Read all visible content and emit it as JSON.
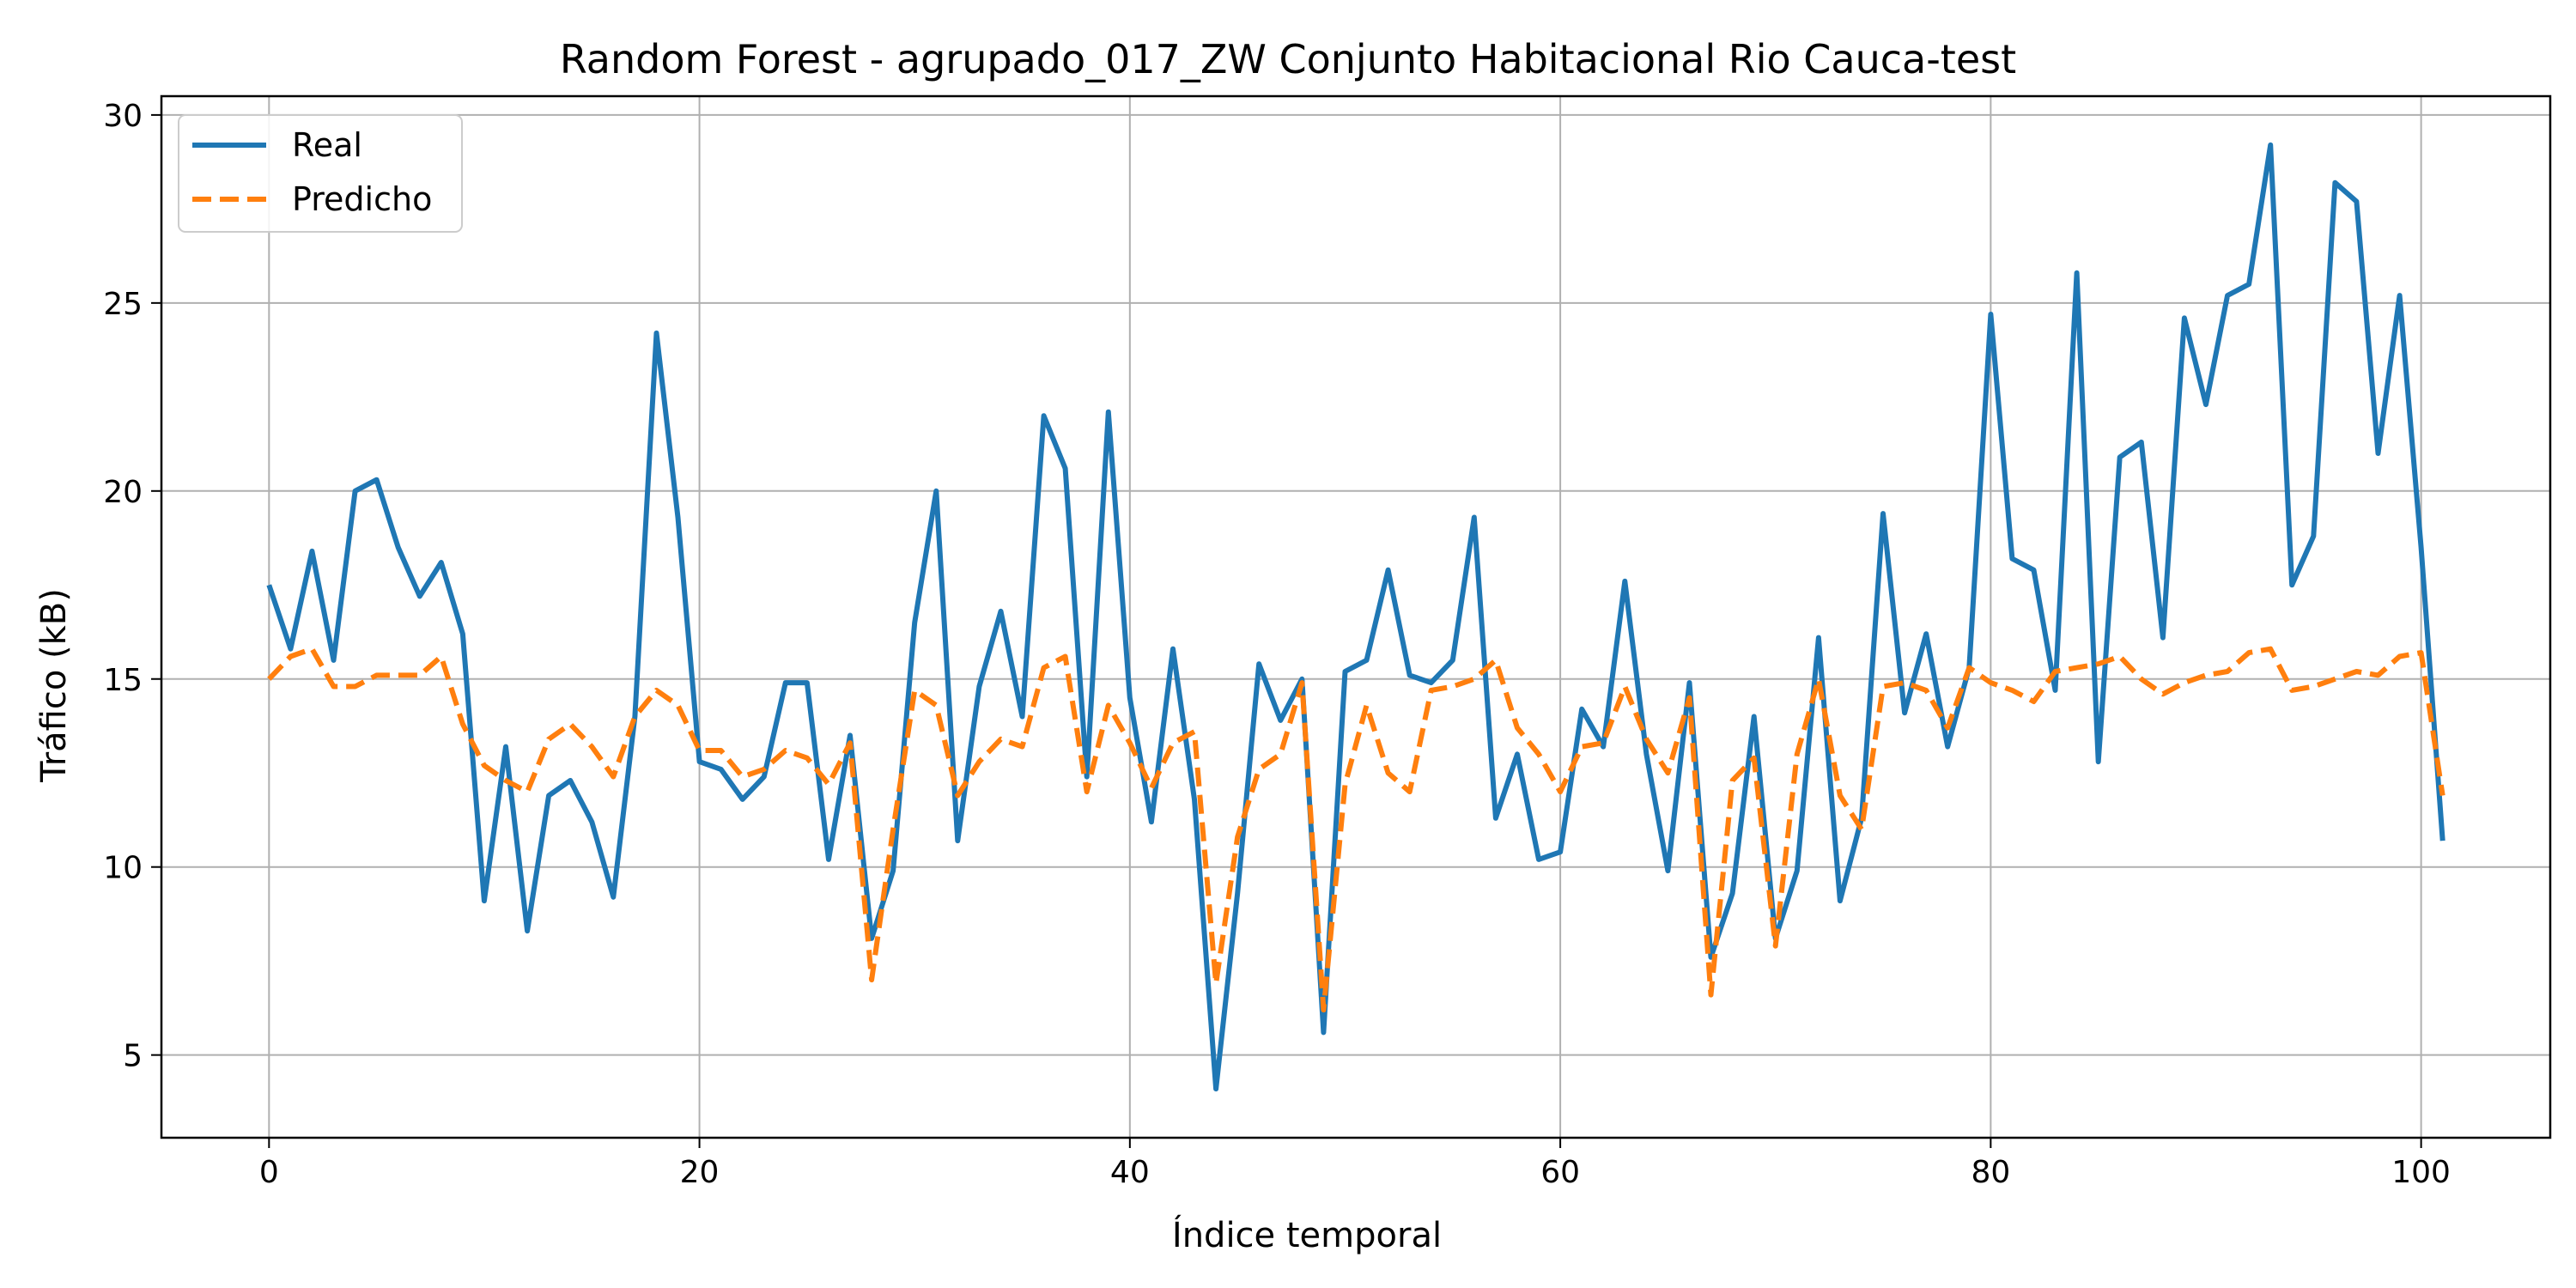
{
  "chart_data": {
    "type": "line",
    "title": "Random Forest - agrupado_017_ZW Conjunto Habitacional Rio Cauca-test",
    "xlabel": "Índice temporal",
    "ylabel": "Tráfico (kB)",
    "xlim": [
      -5,
      106
    ],
    "ylim": [
      2.8,
      30.5
    ],
    "xticks": [
      0,
      20,
      40,
      60,
      80,
      100
    ],
    "yticks": [
      5,
      10,
      15,
      20,
      25,
      30
    ],
    "grid": true,
    "legend_position": "top-left",
    "series": [
      {
        "name": "Real",
        "color": "#1f77b4",
        "style": "solid",
        "values": [
          17.5,
          15.8,
          18.4,
          15.5,
          20.0,
          20.3,
          18.5,
          17.2,
          18.1,
          16.2,
          9.1,
          13.2,
          8.3,
          11.9,
          12.3,
          11.2,
          9.2,
          14.0,
          24.2,
          19.3,
          12.8,
          12.6,
          11.8,
          12.4,
          14.9,
          14.9,
          10.2,
          13.5,
          8.1,
          9.9,
          16.5,
          20.0,
          10.7,
          14.8,
          16.8,
          14.0,
          22.0,
          20.6,
          12.4,
          22.1,
          14.5,
          11.2,
          15.8,
          11.8,
          4.1,
          9.3,
          15.4,
          13.9,
          15.0,
          5.6,
          15.2,
          15.5,
          17.9,
          15.1,
          14.9,
          15.5,
          19.3,
          11.3,
          13.0,
          10.2,
          10.4,
          14.2,
          13.2,
          17.6,
          13.0,
          9.9,
          14.9,
          7.6,
          9.3,
          14.0,
          8.1,
          9.9,
          16.1,
          9.1,
          11.3,
          19.4,
          14.1,
          16.2,
          13.2,
          15.3,
          24.7,
          18.2,
          17.9,
          14.7,
          25.8,
          12.8,
          20.9,
          21.3,
          16.1,
          24.6,
          22.3,
          25.2,
          25.5,
          29.2,
          17.5,
          18.8,
          28.2,
          27.7,
          21.0,
          25.2,
          18.5,
          10.7
        ]
      },
      {
        "name": "Predicho",
        "color": "#ff7f0e",
        "style": "dashed",
        "values": [
          15.0,
          15.6,
          15.8,
          14.8,
          14.8,
          15.1,
          15.1,
          15.1,
          15.6,
          13.8,
          12.7,
          12.3,
          12.0,
          13.4,
          13.8,
          13.2,
          12.4,
          14.0,
          14.7,
          14.3,
          13.1,
          13.1,
          12.4,
          12.6,
          13.1,
          12.9,
          12.2,
          13.3,
          7.0,
          11.0,
          14.7,
          14.3,
          11.9,
          12.8,
          13.4,
          13.2,
          15.3,
          15.6,
          12.0,
          14.3,
          13.3,
          12.1,
          13.3,
          13.6,
          6.9,
          10.8,
          12.6,
          13.0,
          14.9,
          6.2,
          12.2,
          14.3,
          12.5,
          12.0,
          14.7,
          14.8,
          15.0,
          15.5,
          13.7,
          13.0,
          12.0,
          13.2,
          13.3,
          14.8,
          13.4,
          12.5,
          14.5,
          6.6,
          12.3,
          12.9,
          7.9,
          13.0,
          15.0,
          11.9,
          11.0,
          14.8,
          14.9,
          14.7,
          13.7,
          15.3,
          14.9,
          14.7,
          14.4,
          15.2,
          15.3,
          15.4,
          15.6,
          15.0,
          14.6,
          14.9,
          15.1,
          15.2,
          15.7,
          15.8,
          14.7,
          14.8,
          15.0,
          15.2,
          15.1,
          15.6,
          15.7,
          11.9
        ]
      }
    ]
  }
}
